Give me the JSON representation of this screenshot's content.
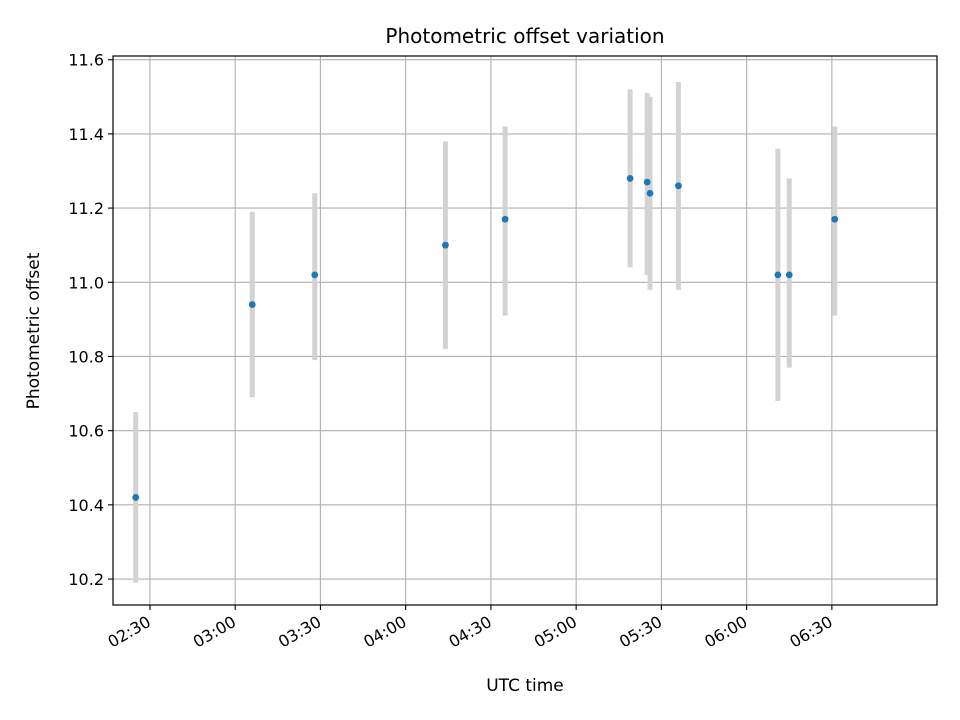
{
  "chart_data": {
    "type": "scatter",
    "title": "Photometric offset variation",
    "xlabel": "UTC time",
    "ylabel": "Photometric offset",
    "xlim": [
      "02:17",
      "07:07"
    ],
    "ylim": [
      10.13,
      11.61
    ],
    "x_ticks": [
      "02:30",
      "03:00",
      "03:30",
      "04:00",
      "04:30",
      "05:00",
      "05:30",
      "06:00",
      "06:30"
    ],
    "y_ticks": [
      "10.2",
      "10.4",
      "10.6",
      "10.8",
      "11.0",
      "11.2",
      "11.4",
      "11.6"
    ],
    "grid": true,
    "point_color": "#1f77b4",
    "errorbar_color": "#d3d3d3",
    "series": [
      {
        "x": [
          "02:25",
          "03:06",
          "03:28",
          "04:14",
          "04:35",
          "05:19",
          "05:25",
          "05:26",
          "05:36",
          "06:11",
          "06:15",
          "06:31"
        ],
        "y": [
          10.42,
          10.94,
          11.02,
          11.1,
          11.17,
          11.28,
          11.27,
          11.24,
          11.26,
          11.02,
          11.02,
          11.17
        ],
        "yerr_low": [
          10.19,
          10.69,
          10.79,
          10.82,
          10.91,
          11.04,
          11.02,
          10.98,
          10.98,
          10.68,
          10.77,
          10.91
        ],
        "yerr_high": [
          10.65,
          11.19,
          11.24,
          11.38,
          11.42,
          11.52,
          11.51,
          11.5,
          11.54,
          11.36,
          11.28,
          11.42
        ]
      }
    ]
  }
}
